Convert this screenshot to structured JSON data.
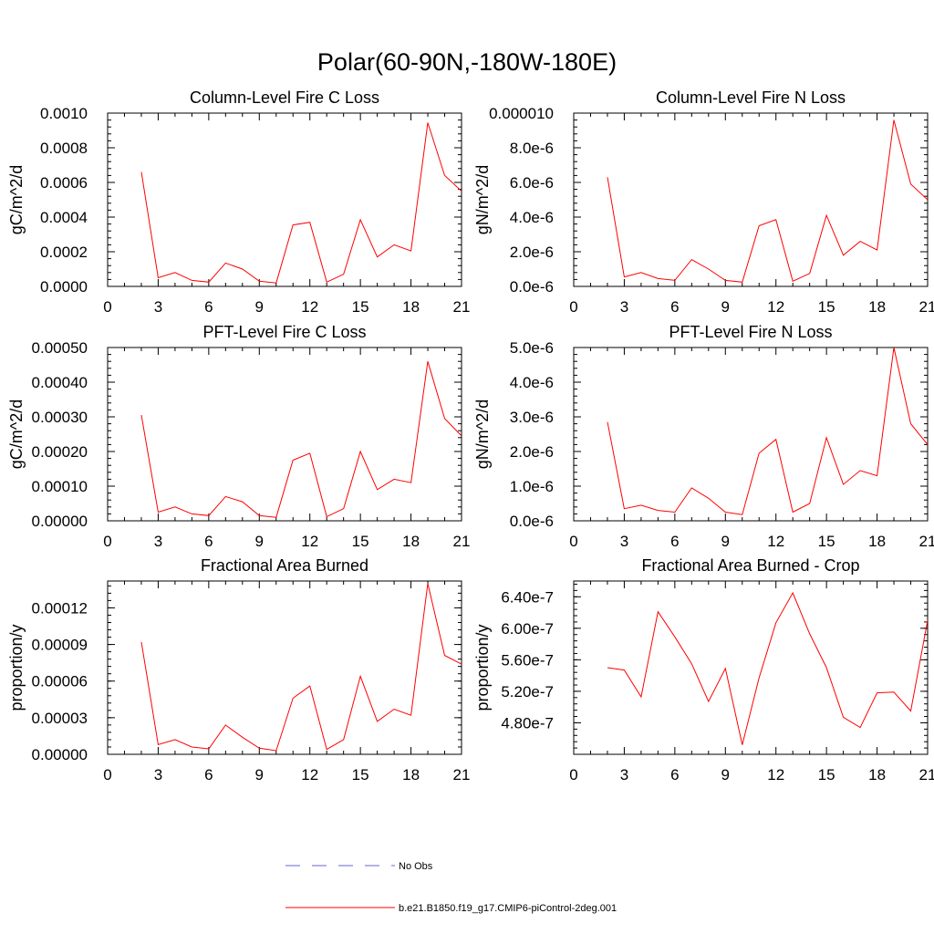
{
  "figure": {
    "title": "Polar(60-90N,-180W-180E)"
  },
  "legend": [
    {
      "label": "No Obs",
      "color": "#6666cc",
      "dash": "dashed"
    },
    {
      "label": "b.e21.B1850.f19_g17.CMIP6-piControl-2deg.001",
      "color": "#ff0000",
      "dash": "solid"
    }
  ],
  "chart_data": [
    {
      "type": "line",
      "title": "Column-Level Fire C Loss",
      "ylabel": "gC/m^2/d",
      "xlim": [
        0,
        21
      ],
      "xticks": [
        "0",
        "3",
        "6",
        "9",
        "12",
        "15",
        "18",
        "21"
      ],
      "ylim": [
        0,
        0.001
      ],
      "yticks": [
        {
          "value": 0,
          "label": "0.0000"
        },
        {
          "value": 0.0002,
          "label": "0.0002"
        },
        {
          "value": 0.0004,
          "label": "0.0004"
        },
        {
          "value": 0.0006,
          "label": "0.0006"
        },
        {
          "value": 0.0008,
          "label": "0.0008"
        },
        {
          "value": 0.001,
          "label": "0.0010"
        }
      ],
      "series": [
        {
          "name": "b.e21.B1850.f19_g17.CMIP6-piControl-2deg.001",
          "x": [
            2,
            3,
            4,
            5,
            6,
            7,
            8,
            9,
            10,
            11,
            12,
            13,
            14,
            15,
            16,
            17,
            18,
            19,
            20,
            21
          ],
          "values": [
            0.00066,
            5e-05,
            8e-05,
            3.5e-05,
            2.5e-05,
            0.000135,
            0.0001,
            3e-05,
            2e-05,
            0.000355,
            0.00037,
            2.5e-05,
            7e-05,
            0.000385,
            0.00017,
            0.00024,
            0.000205,
            0.000945,
            0.00064,
            0.00055
          ]
        }
      ]
    },
    {
      "type": "line",
      "title": "Column-Level Fire N Loss",
      "ylabel": "gN/m^2/d",
      "xlim": [
        0,
        21
      ],
      "xticks": [
        "0",
        "3",
        "6",
        "9",
        "12",
        "15",
        "18",
        "21"
      ],
      "ylim": [
        0,
        1e-05
      ],
      "yticks": [
        {
          "value": 0,
          "label": "0.0e-6"
        },
        {
          "value": 2e-06,
          "label": "2.0e-6"
        },
        {
          "value": 4e-06,
          "label": "4.0e-6"
        },
        {
          "value": 6e-06,
          "label": "6.0e-6"
        },
        {
          "value": 8e-06,
          "label": "8.0e-6"
        },
        {
          "value": 1e-05,
          "label": "0.000010"
        }
      ],
      "series": [
        {
          "name": "b.e21.B1850.f19_g17.CMIP6-piControl-2deg.001",
          "x": [
            2,
            3,
            4,
            5,
            6,
            7,
            8,
            9,
            10,
            11,
            12,
            13,
            14,
            15,
            16,
            17,
            18,
            19,
            20,
            21
          ],
          "values": [
            6.3e-06,
            5.5e-07,
            8e-07,
            4.5e-07,
            3.5e-07,
            1.55e-06,
            1e-06,
            3.5e-07,
            2.5e-07,
            3.5e-06,
            3.85e-06,
            3e-07,
            7.5e-07,
            4.1e-06,
            1.8e-06,
            2.6e-06,
            2.1e-06,
            9.6e-06,
            5.9e-06,
            5e-06
          ]
        }
      ]
    },
    {
      "type": "line",
      "title": "PFT-Level Fire C Loss",
      "ylabel": "gC/m^2/d",
      "xlim": [
        0,
        21
      ],
      "xticks": [
        "0",
        "3",
        "6",
        "9",
        "12",
        "15",
        "18",
        "21"
      ],
      "ylim": [
        0,
        0.0005
      ],
      "yticks": [
        {
          "value": 0,
          "label": "0.00000"
        },
        {
          "value": 0.0001,
          "label": "0.00010"
        },
        {
          "value": 0.0002,
          "label": "0.00020"
        },
        {
          "value": 0.0003,
          "label": "0.00030"
        },
        {
          "value": 0.0004,
          "label": "0.00040"
        },
        {
          "value": 0.0005,
          "label": "0.00050"
        }
      ],
      "series": [
        {
          "name": "b.e21.B1850.f19_g17.CMIP6-piControl-2deg.001",
          "x": [
            2,
            3,
            4,
            5,
            6,
            7,
            8,
            9,
            10,
            11,
            12,
            13,
            14,
            15,
            16,
            17,
            18,
            19,
            20,
            21
          ],
          "values": [
            0.000305,
            2.5e-05,
            4e-05,
            2e-05,
            1.5e-05,
            7e-05,
            5.5e-05,
            1.5e-05,
            1e-05,
            0.000175,
            0.000195,
            1.2e-05,
            3.5e-05,
            0.0002,
            9e-05,
            0.00012,
            0.00011,
            0.00046,
            0.000295,
            0.000245
          ]
        }
      ]
    },
    {
      "type": "line",
      "title": "PFT-Level Fire N Loss",
      "ylabel": "gN/m^2/d",
      "xlim": [
        0,
        21
      ],
      "xticks": [
        "0",
        "3",
        "6",
        "9",
        "12",
        "15",
        "18",
        "21"
      ],
      "ylim": [
        0,
        5e-06
      ],
      "yticks": [
        {
          "value": 0,
          "label": "0.0e-6"
        },
        {
          "value": 1e-06,
          "label": "1.0e-6"
        },
        {
          "value": 2e-06,
          "label": "2.0e-6"
        },
        {
          "value": 3e-06,
          "label": "3.0e-6"
        },
        {
          "value": 4e-06,
          "label": "4.0e-6"
        },
        {
          "value": 5e-06,
          "label": "5.0e-6"
        }
      ],
      "series": [
        {
          "name": "b.e21.B1850.f19_g17.CMIP6-piControl-2deg.001",
          "x": [
            2,
            3,
            4,
            5,
            6,
            7,
            8,
            9,
            10,
            11,
            12,
            13,
            14,
            15,
            16,
            17,
            18,
            19,
            20,
            21
          ],
          "values": [
            2.85e-06,
            3.5e-07,
            4.5e-07,
            3e-07,
            2.5e-07,
            9.5e-07,
            6.5e-07,
            2.5e-07,
            1.8e-07,
            1.95e-06,
            2.35e-06,
            2.5e-07,
            5e-07,
            2.4e-06,
            1.05e-06,
            1.45e-06,
            1.3e-06,
            5e-06,
            2.8e-06,
            2.2e-06
          ]
        }
      ]
    },
    {
      "type": "line",
      "title": "Fractional Area Burned",
      "ylabel": "proportion/y",
      "xlim": [
        0,
        21
      ],
      "xticks": [
        "0",
        "3",
        "6",
        "9",
        "12",
        "15",
        "18",
        "21"
      ],
      "ylim": [
        0,
        0.000142
      ],
      "yticks": [
        {
          "value": 0,
          "label": "0.00000"
        },
        {
          "value": 3e-05,
          "label": "0.00003"
        },
        {
          "value": 6e-05,
          "label": "0.00006"
        },
        {
          "value": 9e-05,
          "label": "0.00009"
        },
        {
          "value": 0.00012,
          "label": "0.00012"
        }
      ],
      "series": [
        {
          "name": "b.e21.B1850.f19_g17.CMIP6-piControl-2deg.001",
          "x": [
            2,
            3,
            4,
            5,
            6,
            7,
            8,
            9,
            10,
            11,
            12,
            13,
            14,
            15,
            16,
            17,
            18,
            19,
            20,
            21
          ],
          "values": [
            9.2e-05,
            8e-06,
            1.2e-05,
            6e-06,
            4.5e-06,
            2.4e-05,
            1.4e-05,
            5e-06,
            3e-06,
            4.6e-05,
            5.6e-05,
            4e-06,
            1.2e-05,
            6.4e-05,
            2.7e-05,
            3.7e-05,
            3.2e-05,
            0.00014,
            8.1e-05,
            7.4e-05
          ]
        }
      ]
    },
    {
      "type": "line",
      "title": "Fractional Area Burned - Crop",
      "ylabel": "proportion/y",
      "xlim": [
        0,
        21
      ],
      "xticks": [
        "0",
        "3",
        "6",
        "9",
        "12",
        "15",
        "18",
        "21"
      ],
      "ylim": [
        4.4e-07,
        6.6e-07
      ],
      "yticks": [
        {
          "value": 4.8e-07,
          "label": "4.80e-7"
        },
        {
          "value": 5.2e-07,
          "label": "5.20e-7"
        },
        {
          "value": 5.6e-07,
          "label": "5.60e-7"
        },
        {
          "value": 6e-07,
          "label": "6.00e-7"
        },
        {
          "value": 6.4e-07,
          "label": "6.40e-7"
        }
      ],
      "series": [
        {
          "name": "b.e21.B1850.f19_g17.CMIP6-piControl-2deg.001",
          "x": [
            2,
            3,
            4,
            5,
            6,
            7,
            8,
            9,
            10,
            11,
            12,
            13,
            14,
            15,
            16,
            17,
            18,
            19,
            20,
            21
          ],
          "values": [
            5.5e-07,
            5.47e-07,
            5.13e-07,
            6.21e-07,
            5.89e-07,
            5.55e-07,
            5.07e-07,
            5.49e-07,
            4.52e-07,
            5.37e-07,
            6.07e-07,
            6.45e-07,
            5.93e-07,
            5.5e-07,
            4.87e-07,
            4.74e-07,
            5.18e-07,
            5.19e-07,
            4.95e-07,
            6.1e-07
          ]
        }
      ]
    }
  ]
}
